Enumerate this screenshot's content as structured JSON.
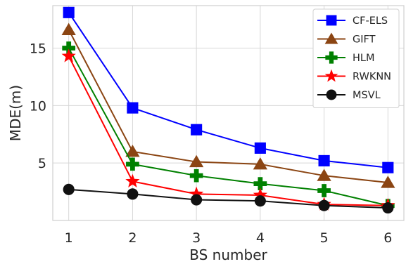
{
  "chart_data": {
    "type": "line",
    "xlabel": "BS number",
    "ylabel": "MDE(m)",
    "x": [
      1,
      2,
      3,
      4,
      5,
      6
    ],
    "xlim": [
      0.75,
      6.25
    ],
    "ylim": [
      0,
      18.7
    ],
    "xticks": [
      1,
      2,
      3,
      4,
      5,
      6
    ],
    "yticks": [
      5,
      10,
      15
    ],
    "grid": true,
    "legend_position": "top-right",
    "series": [
      {
        "name": "CF-ELS",
        "color": "#0000ff",
        "marker": "square",
        "values": [
          18.1,
          9.8,
          7.9,
          6.3,
          5.2,
          4.6
        ]
      },
      {
        "name": "GIFT",
        "color": "#8b4513",
        "marker": "triangle",
        "values": [
          16.6,
          6.0,
          5.1,
          4.9,
          3.9,
          3.3
        ]
      },
      {
        "name": "HLM",
        "color": "#008000",
        "marker": "plus",
        "values": [
          15.0,
          4.9,
          3.9,
          3.2,
          2.6,
          1.3
        ]
      },
      {
        "name": "RWKNN",
        "color": "#ff0000",
        "marker": "star",
        "values": [
          14.3,
          3.4,
          2.3,
          2.2,
          1.4,
          1.3
        ]
      },
      {
        "name": "MSVL",
        "color": "#111111",
        "marker": "circle",
        "values": [
          2.7,
          2.3,
          1.8,
          1.7,
          1.3,
          1.1
        ]
      }
    ]
  }
}
